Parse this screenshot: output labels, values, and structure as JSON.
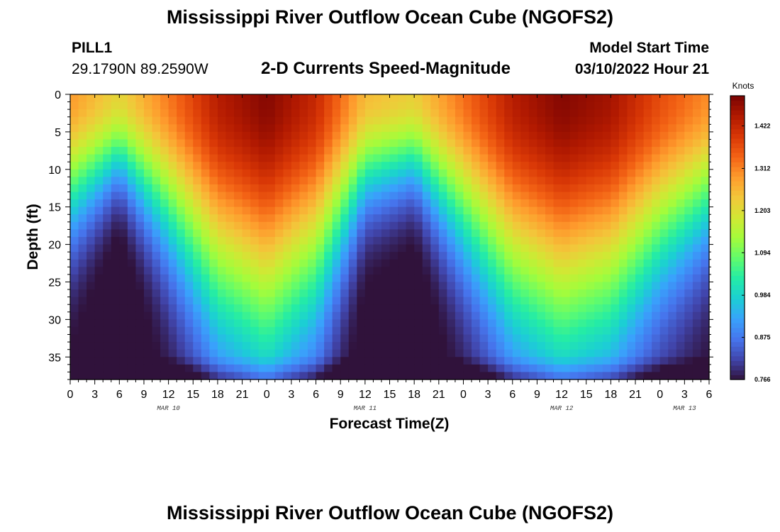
{
  "header": {
    "title": "Mississippi River Outflow Ocean Cube (NGOFS2)",
    "station": "PILL1",
    "coordinates": "29.1790N  89.2590W",
    "subtitle": "2-D Currents Speed-Magnitude",
    "model_start_label": "Model Start Time",
    "model_start_value": "03/10/2022 Hour 21"
  },
  "footer": {
    "title": "Mississippi River Outflow Ocean Cube (NGOFS2)"
  },
  "chart_data": {
    "type": "heatmap",
    "xlabel": "Forecast Time(Z)",
    "ylabel": "Depth (ft)",
    "x_unit": "hours from 03/10/2022 00Z",
    "xlim": [
      0,
      78
    ],
    "ylim": [
      0,
      38
    ],
    "y_inverted": true,
    "x_tick_labels": [
      "0",
      "3",
      "6",
      "9",
      "12",
      "15",
      "18",
      "21",
      "0",
      "3",
      "6",
      "9",
      "12",
      "15",
      "18",
      "21",
      "0",
      "3",
      "6",
      "9",
      "12",
      "15",
      "18",
      "21",
      "0",
      "3",
      "6"
    ],
    "x_tick_step_hours": 3,
    "day_labels": [
      {
        "label": "MAR 10",
        "hour": 12
      },
      {
        "label": "MAR 11",
        "hour": 36
      },
      {
        "label": "MAR 12",
        "hour": 60
      },
      {
        "label": "MAR 13",
        "hour": 75
      }
    ],
    "y_ticks": [
      0,
      5,
      10,
      15,
      20,
      25,
      30,
      35
    ],
    "colorbar": {
      "title": "Knots",
      "ticks": [
        0.766,
        0.875,
        0.984,
        1.094,
        1.203,
        1.312,
        1.422
      ],
      "min": 0.766,
      "max": 1.5,
      "colors": [
        "#30123b",
        "#4145ab",
        "#4675ed",
        "#39a2fc",
        "#1bcfd4",
        "#24eca6",
        "#61fc6c",
        "#a4fc3b",
        "#d1e834",
        "#f3c63a",
        "#fe9b2d",
        "#f36315",
        "#d93806",
        "#b11901",
        "#7a0402"
      ]
    },
    "depth_profile_ft": [
      0,
      5,
      10,
      15,
      20,
      25,
      30,
      35,
      38
    ],
    "surface_speed_by_hour": [
      {
        "hour": 0,
        "knots": 1.29
      },
      {
        "hour": 6,
        "knots": 1.21
      },
      {
        "hour": 12,
        "knots": 1.32
      },
      {
        "hour": 18,
        "knots": 1.44
      },
      {
        "hour": 24,
        "knots": 1.49
      },
      {
        "hour": 30,
        "knots": 1.42
      },
      {
        "hour": 36,
        "knots": 1.25
      },
      {
        "hour": 42,
        "knots": 1.22
      },
      {
        "hour": 48,
        "knots": 1.33
      },
      {
        "hour": 54,
        "knots": 1.44
      },
      {
        "hour": 60,
        "knots": 1.49
      },
      {
        "hour": 66,
        "knots": 1.46
      },
      {
        "hour": 72,
        "knots": 1.37
      },
      {
        "hour": 78,
        "knots": 1.3
      }
    ]
  }
}
